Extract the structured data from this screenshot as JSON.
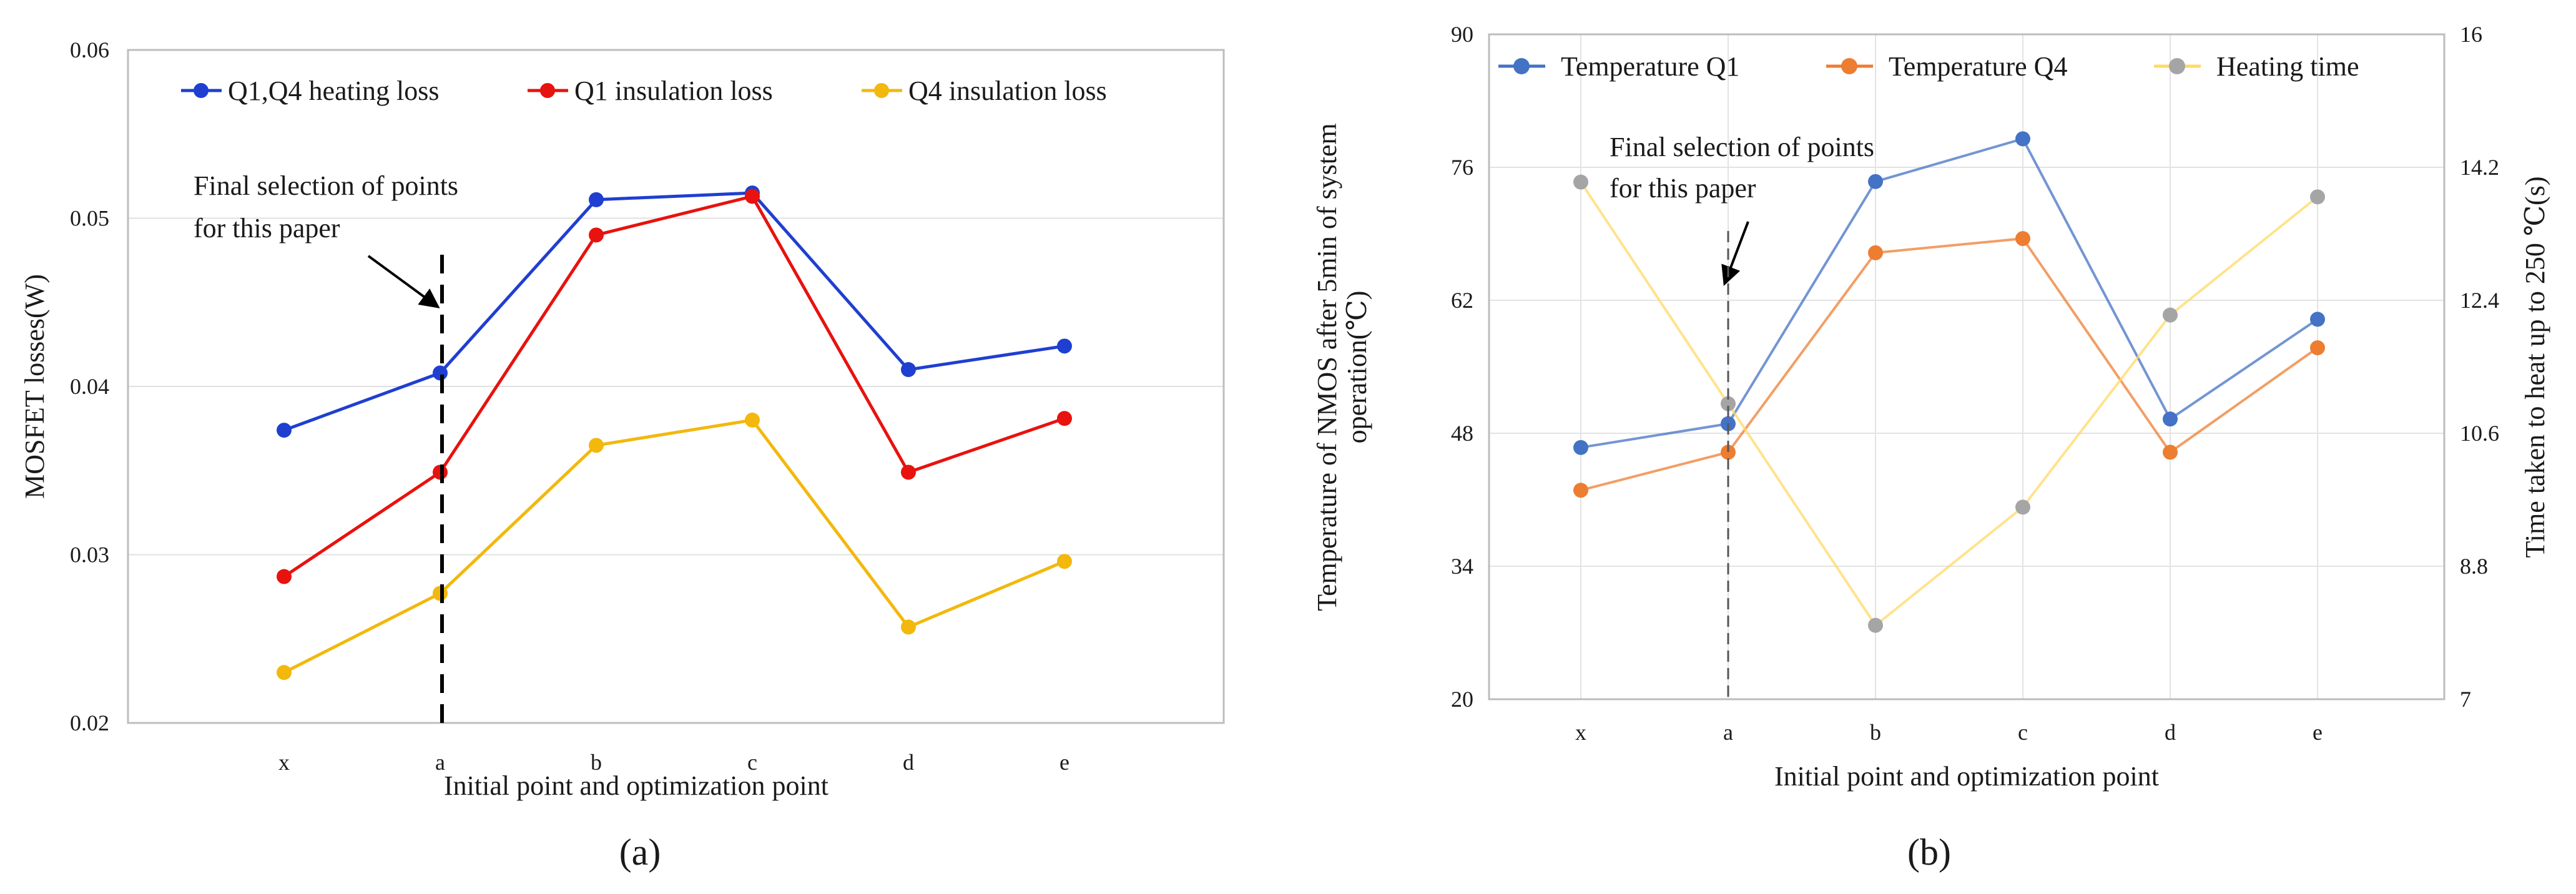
{
  "chart_data": [
    {
      "type": "line",
      "panel_label": "(a)",
      "categories": [
        "x",
        "a",
        "b",
        "c",
        "d",
        "e"
      ],
      "series": [
        {
          "name": "Q1,Q4 heating loss",
          "color": "#1f3fd1",
          "values": [
            0.0374,
            0.0408,
            0.0511,
            0.0515,
            0.041,
            0.0424
          ]
        },
        {
          "name": "Q1 insulation loss",
          "color": "#e8120e",
          "values": [
            0.0287,
            0.0349,
            0.049,
            0.0513,
            0.0349,
            0.0381
          ]
        },
        {
          "name": "Q4 insulation loss",
          "color": "#f2b80c",
          "values": [
            0.023,
            0.0277,
            0.0365,
            0.038,
            0.0257,
            0.0296
          ]
        }
      ],
      "xlabel": "Initial point and optimization point",
      "ylabel": "MOSFET losses(W)",
      "ylim": [
        0.02,
        0.06
      ],
      "yticks": [
        "0.02",
        "0.03",
        "0.04",
        "0.05",
        "0.06"
      ],
      "grid": true,
      "legend": "top",
      "annotation": {
        "lines": [
          "Final selection of points",
          "for this paper"
        ],
        "at_category": "a",
        "style": "dashed vertical line with arrow"
      }
    },
    {
      "type": "line",
      "panel_label": "(b)",
      "categories": [
        "x",
        "a",
        "b",
        "c",
        "d",
        "e"
      ],
      "series": [
        {
          "name": "Temperature Q1",
          "axis": "left",
          "color": "#4472c4",
          "values": [
            46.5,
            49.0,
            74.5,
            79.0,
            49.5,
            60.0
          ]
        },
        {
          "name": "Temperature Q4",
          "axis": "left",
          "color": "#ed7d31",
          "values": [
            42.0,
            46.0,
            67.0,
            68.5,
            46.0,
            57.0
          ]
        },
        {
          "name": "Heating time",
          "axis": "right",
          "color": "#a5a5a5",
          "line_color": "#ffd966",
          "values": [
            14.0,
            11.0,
            8.0,
            9.6,
            12.2,
            13.8
          ]
        }
      ],
      "xlabel": "Initial point and optimization point",
      "ylabel_left_lines": [
        "Temperature of NMOS after 5min of system",
        "operation(℃)"
      ],
      "ylabel_right": "Time taken to heat up to 250 ℃(s)",
      "ylim_left": [
        20,
        90
      ],
      "yticks_left": [
        "20",
        "34",
        "48",
        "62",
        "76",
        "90"
      ],
      "ylim_right": [
        7,
        16
      ],
      "yticks_right": [
        "7",
        "8.8",
        "10.6",
        "12.4",
        "14.2",
        "16"
      ],
      "grid": true,
      "legend": "top",
      "annotation": {
        "lines": [
          "Final selection of points",
          "for this paper"
        ],
        "at_category": "a",
        "style": "dashed vertical line with arrow"
      }
    }
  ]
}
